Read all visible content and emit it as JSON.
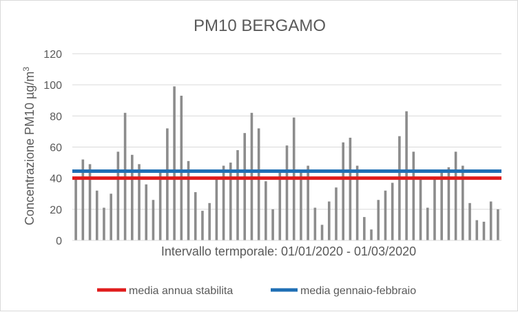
{
  "chart_data": {
    "type": "bar",
    "title": "PM10 BERGAMO",
    "ylabel": "Concentrazione PM10 µg/m",
    "ylabel_sup": "3",
    "xlabel": "Intervallo termporale: 01/01/2020 - 01/03/2020",
    "ylim": [
      0,
      120
    ],
    "yticks": [
      0,
      20,
      40,
      60,
      80,
      100,
      120
    ],
    "grid": true,
    "bar_color": "#8c8c8c",
    "values": [
      41,
      52,
      49,
      32,
      21,
      30,
      57,
      82,
      55,
      49,
      36,
      26,
      45,
      72,
      99,
      93,
      51,
      31,
      19,
      24,
      40,
      48,
      50,
      58,
      69,
      82,
      72,
      38,
      20,
      45,
      61,
      79,
      45,
      48,
      21,
      10,
      25,
      34,
      63,
      66,
      48,
      15,
      7,
      26,
      32,
      37,
      67,
      83,
      57,
      41,
      21,
      40,
      45,
      47,
      57,
      48,
      24,
      13,
      12,
      25,
      20
    ],
    "reference_lines": [
      {
        "name": "media annua stabilita",
        "value": 40,
        "color": "#e01c1c"
      },
      {
        "name": "media gennaio-febbraio",
        "value": 44.5,
        "color": "#1f6fb5"
      }
    ],
    "legend_position": "bottom"
  }
}
